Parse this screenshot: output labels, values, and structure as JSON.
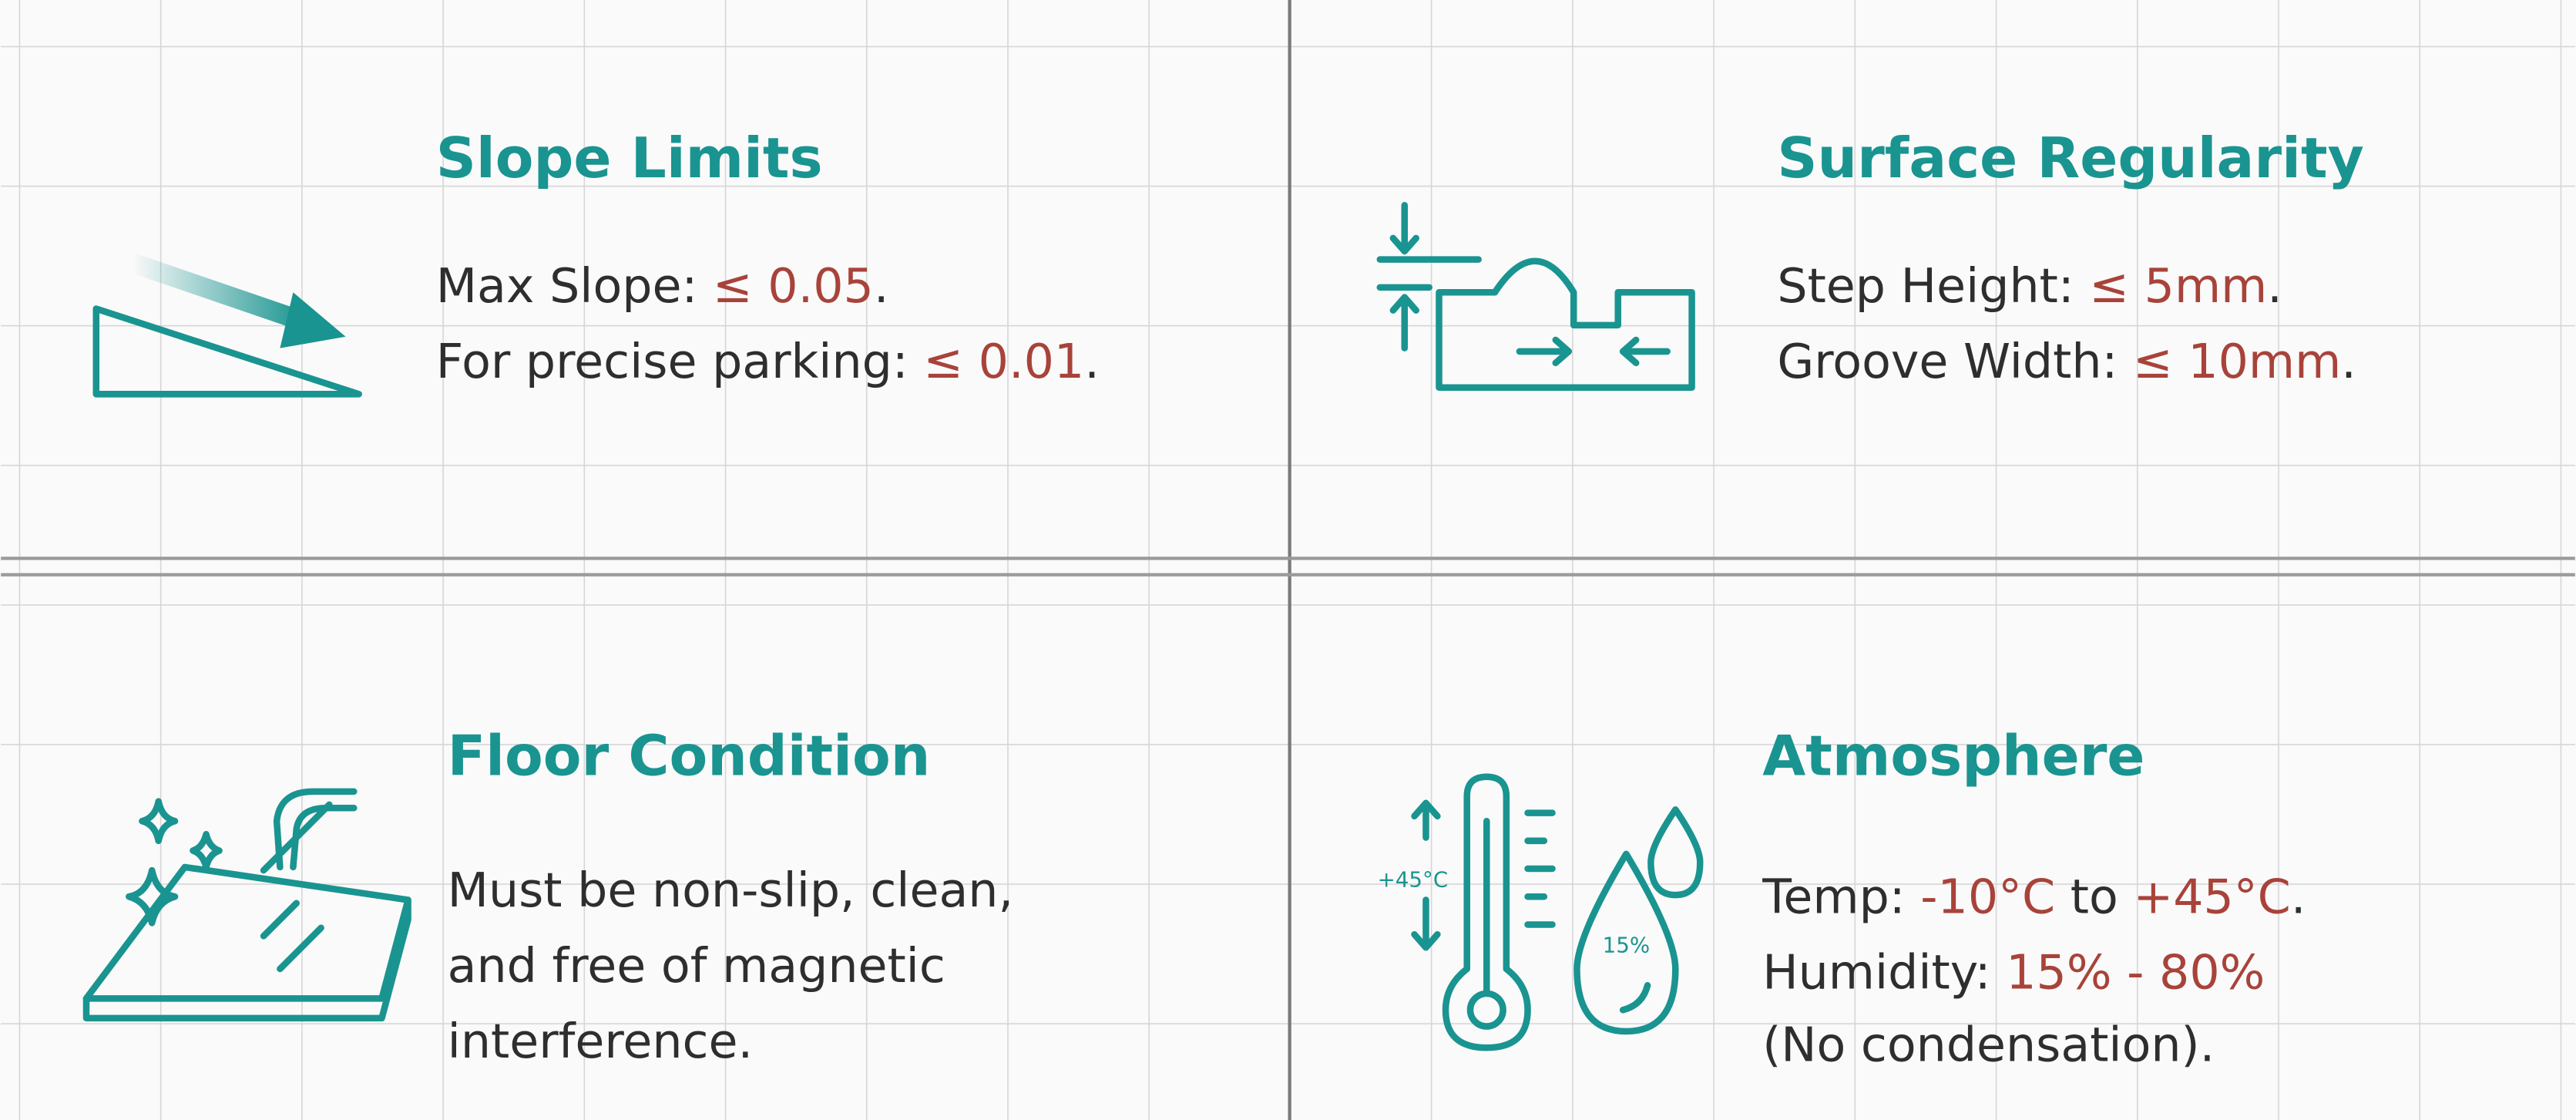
{
  "panels": [
    {
      "title": "Slope Limits",
      "lines": [
        [
          {
            "text": "Max Slope: "
          },
          {
            "text": "≤ 0.05",
            "accent": true
          },
          {
            "text": "."
          }
        ],
        [
          {
            "text": "For precise parking: "
          },
          {
            "text": "≤ 0.01",
            "accent": true
          },
          {
            "text": "."
          }
        ]
      ]
    },
    {
      "title": "Surface Regularity",
      "lines": [
        [
          {
            "text": "Step Height: "
          },
          {
            "text": "≤ 5mm",
            "accent": true
          },
          {
            "text": "."
          }
        ],
        [
          {
            "text": "Groove Width: "
          },
          {
            "text": "≤ 10mm",
            "accent": true
          },
          {
            "text": "."
          }
        ]
      ]
    },
    {
      "title": "Floor Condition",
      "lines": [
        [
          {
            "text": "Must be non-slip, clean,"
          }
        ],
        [
          {
            "text": "and free of magnetic"
          }
        ],
        [
          {
            "text": "interference."
          }
        ]
      ]
    },
    {
      "title": "Atmosphere",
      "lines": [
        [
          {
            "text": "Temp: "
          },
          {
            "text": "-10°C",
            "accent": true
          },
          {
            "text": " to "
          },
          {
            "text": "+45°C",
            "accent": true
          },
          {
            "text": "."
          }
        ],
        [
          {
            "text": "Humidity: "
          },
          {
            "text": "15% - 80%",
            "accent": true
          }
        ],
        [
          {
            "text": "(No condensation)."
          }
        ]
      ]
    }
  ],
  "icon_labels": {
    "thermometer": "+45°C",
    "drop": "15%"
  }
}
